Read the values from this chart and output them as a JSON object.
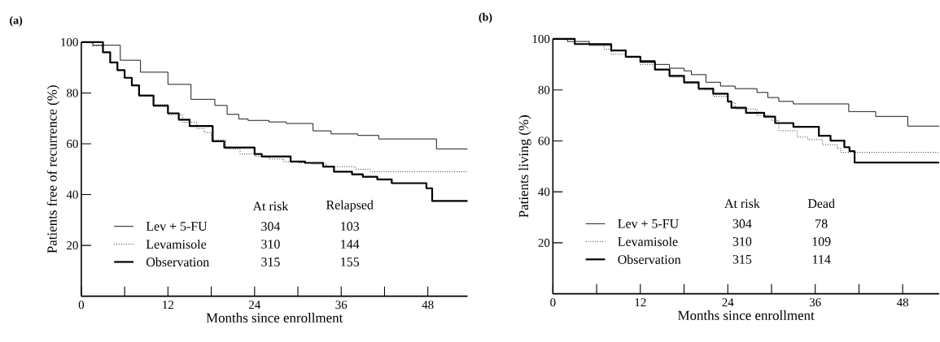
{
  "chart_data": [
    {
      "type": "step",
      "title": "(a)",
      "xlabel": "Months since enrollment",
      "ylabel": "Patients free of recurrence (%)",
      "xlim": [
        0,
        53.5
      ],
      "ylim": [
        0,
        100
      ],
      "xticks": [
        0,
        {
          "value": 6,
          "label": null
        },
        12,
        {
          "value": 18,
          "label": null
        },
        24,
        {
          "value": 30,
          "label": null
        },
        36,
        {
          "value": 42,
          "label": null
        },
        48
      ],
      "yticks": [
        20,
        40,
        60,
        80,
        100
      ],
      "legend": "bottom",
      "annotations": [
        "At risk",
        "Relapsed",
        "304",
        "103",
        "310",
        "144",
        "315",
        "155"
      ],
      "series": [
        {
          "name": "Lev + 5-FU",
          "color": "#000000",
          "line_style": "solid",
          "x": [
            0,
            1.6,
            5.4,
            8.2,
            12,
            15.2,
            18.5,
            20.2,
            21.8,
            23.1,
            26,
            28.4,
            32.1,
            34.6,
            38.3,
            41.2,
            49.2,
            53.5
          ],
          "values": [
            100,
            98.8,
            92.9,
            88.2,
            83.4,
            77.5,
            75.1,
            71.6,
            69.8,
            69.2,
            68.6,
            68,
            65.1,
            63.9,
            63.3,
            61.9,
            58,
            58
          ]
        },
        {
          "name": "Levamisole",
          "color": "#000000",
          "line_style": "dotted",
          "x": [
            0,
            1.5,
            3,
            4,
            5,
            6,
            7,
            8,
            10,
            12,
            14,
            16,
            17,
            18,
            20,
            22,
            24,
            26,
            28,
            30,
            32,
            34,
            38,
            40,
            53.5
          ],
          "values": [
            100,
            98.5,
            96,
            92,
            89,
            86,
            83,
            79,
            75.5,
            71.5,
            68.5,
            66,
            64.5,
            61.5,
            58,
            56,
            55,
            54,
            53,
            52.5,
            52,
            51,
            50,
            49,
            49
          ]
        },
        {
          "name": "Observation",
          "color": "#000000",
          "line_style": "solid",
          "x": [
            0,
            3,
            4,
            5,
            6,
            7,
            8,
            10,
            12,
            13.5,
            15,
            18.2,
            19.8,
            24,
            25,
            29,
            31,
            33.5,
            35,
            37.5,
            39,
            41,
            43,
            47.8,
            48.6,
            53.5
          ],
          "values": [
            100,
            96,
            92,
            89,
            86,
            83,
            79,
            75,
            72,
            69.5,
            67,
            61,
            58.5,
            56,
            55,
            53,
            52.5,
            51,
            49,
            48,
            47,
            46,
            44.5,
            42.5,
            37.5,
            37.5
          ]
        }
      ]
    },
    {
      "type": "step",
      "title": "(b)",
      "xlabel": "Months since enrollment",
      "ylabel": "Patients living (%)",
      "xlim": [
        0,
        53
      ],
      "ylim": [
        0,
        100
      ],
      "xticks": [
        0,
        {
          "value": 6,
          "label": null
        },
        12,
        {
          "value": 18,
          "label": null
        },
        24,
        {
          "value": 30,
          "label": null
        },
        36,
        {
          "value": 42,
          "label": null
        },
        48
      ],
      "yticks": [
        20,
        40,
        60,
        80,
        100
      ],
      "legend": "bottom",
      "annotations": [
        "At risk",
        "Dead",
        "304",
        "78",
        "310",
        "109",
        "315",
        "114"
      ],
      "series": [
        {
          "name": "Lev + 5-FU",
          "color": "#000000",
          "line_style": "solid",
          "x": [
            0,
            2,
            5,
            8,
            10,
            12,
            14,
            16,
            18,
            19,
            21,
            23,
            25,
            28,
            29.5,
            31,
            33,
            40.6,
            44.3,
            48.7,
            53
          ],
          "values": [
            100,
            99,
            97.5,
            95.5,
            93,
            91.5,
            90,
            88.5,
            87.5,
            86,
            83,
            81.5,
            80.5,
            79,
            77,
            75.5,
            74.5,
            71.5,
            69.6,
            65.8,
            65.8
          ]
        },
        {
          "name": "Levamisole",
          "color": "#000000",
          "line_style": "dotted",
          "x": [
            0,
            3,
            7,
            8,
            10,
            12,
            14,
            16,
            18,
            20,
            22,
            24,
            25,
            28,
            30,
            31,
            33.5,
            35,
            37,
            39,
            39.5,
            53
          ],
          "values": [
            100,
            98,
            96,
            94,
            93,
            90,
            88,
            85,
            82.5,
            80,
            77.5,
            75,
            72.5,
            70,
            68,
            64,
            61.5,
            60.5,
            58.5,
            57,
            55.5,
            55.5
          ]
        },
        {
          "name": "Observation",
          "color": "#000000",
          "line_style": "solid",
          "x": [
            0,
            3,
            8,
            10,
            12,
            14,
            16,
            18,
            20,
            22,
            24,
            24.5,
            26.5,
            29,
            30.5,
            33,
            36.5,
            38.1,
            40,
            40.7,
            41.4,
            53
          ],
          "values": [
            100,
            98,
            95.5,
            93,
            91,
            88,
            85.5,
            83,
            80.5,
            78.5,
            75.5,
            73,
            71,
            69.5,
            67,
            65.5,
            62,
            60.1,
            57.5,
            56,
            51.5,
            51.5
          ]
        }
      ]
    }
  ]
}
